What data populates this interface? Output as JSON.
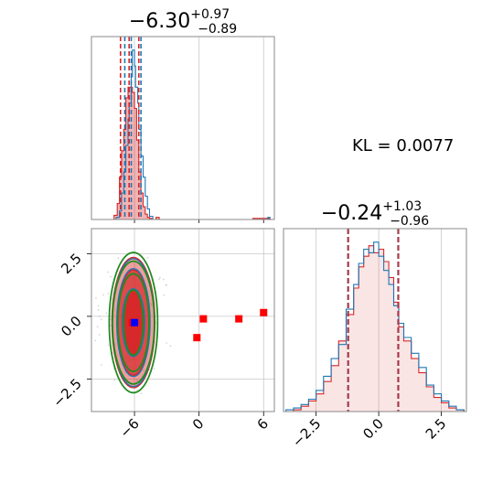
{
  "chart_data": {
    "type": "corner",
    "colors": {
      "blue": "#1f77b4",
      "red": "#d62728",
      "green": "#228B22",
      "grid": "#c8c8c8",
      "frame": "#888888"
    },
    "kl_text": "KL = 0.0077",
    "params": [
      {
        "title": {
          "main": "−6.30",
          "plus": "+0.97",
          "minus": "−0.89"
        },
        "xlim": [
          -10,
          7
        ],
        "quantile_lines": {
          "blue": [
            -6.9,
            -6.3,
            -5.4
          ],
          "red": [
            -7.3,
            -6.5,
            -5.6
          ]
        },
        "hist_blue": {
          "x": [
            -8.0,
            -7.7,
            -7.4,
            -7.2,
            -7.0,
            -6.8,
            -6.6,
            -6.5,
            -6.3,
            -6.2,
            -6.0,
            -5.9,
            -5.7,
            -5.6,
            -5.4,
            -5.2,
            -5.0,
            -4.8,
            -4.6,
            -4.3,
            6.4
          ],
          "y": [
            0,
            2,
            8,
            25,
            45,
            70,
            95,
            110,
            135,
            160,
            145,
            125,
            110,
            85,
            60,
            40,
            22,
            10,
            3,
            0,
            2
          ]
        },
        "hist_red": {
          "x": [
            -8.2,
            -7.9,
            -7.6,
            -7.4,
            -7.2,
            -7.0,
            -6.8,
            -6.6,
            -6.4,
            -6.2,
            -6.0,
            -5.8,
            -5.6,
            -5.4,
            -5.2,
            -5.0,
            -4.8,
            -4.6,
            -4.4,
            -4.0,
            -3.7,
            5.0,
            6.6
          ],
          "y": [
            0,
            4,
            15,
            40,
            65,
            85,
            115,
            125,
            125,
            120,
            105,
            75,
            45,
            25,
            12,
            5,
            2,
            1,
            0,
            2,
            0,
            1,
            0
          ]
        }
      },
      {
        "title": {
          "main": "−0.24",
          "plus": "+1.03",
          "minus": "−0.96"
        },
        "xlim": [
          -3.8,
          3.5
        ],
        "ticks": [
          "−2.5",
          "0.0",
          "2.5"
        ],
        "tick_values": [
          -2.5,
          0.0,
          2.5
        ],
        "quantile_lines": {
          "blue": [
            -1.22,
            0.78
          ],
          "red": [
            -1.22,
            0.78
          ]
        },
        "hist_blue": {
          "x": [
            -3.7,
            -3.4,
            -3.1,
            -2.8,
            -2.5,
            -2.2,
            -1.9,
            -1.6,
            -1.3,
            -1.0,
            -0.8,
            -0.6,
            -0.4,
            -0.2,
            0.0,
            0.2,
            0.4,
            0.6,
            0.8,
            1.0,
            1.3,
            1.6,
            1.9,
            2.2,
            2.5,
            2.8,
            3.1,
            3.4
          ],
          "y": [
            1,
            2,
            4,
            7,
            12,
            20,
            30,
            38,
            58,
            72,
            84,
            92,
            90,
            96,
            88,
            80,
            72,
            60,
            50,
            42,
            33,
            25,
            15,
            10,
            6,
            3,
            1,
            0
          ]
        },
        "hist_red": {
          "x": [
            -3.7,
            -3.4,
            -3.1,
            -2.8,
            -2.5,
            -2.2,
            -1.9,
            -1.6,
            -1.3,
            -1.0,
            -0.8,
            -0.6,
            -0.4,
            -0.2,
            0.0,
            0.2,
            0.4,
            0.6,
            0.8,
            1.0,
            1.3,
            1.6,
            1.9,
            2.2,
            2.5,
            2.8,
            3.1,
            3.4
          ],
          "y": [
            0,
            1,
            3,
            6,
            10,
            17,
            26,
            40,
            55,
            70,
            82,
            88,
            94,
            90,
            92,
            85,
            76,
            62,
            48,
            40,
            30,
            22,
            14,
            8,
            5,
            2,
            1,
            0
          ]
        }
      }
    ],
    "joint": {
      "xlim": [
        -10,
        7
      ],
      "ylim": [
        -3.8,
        3.5
      ],
      "x_ticks": [
        "−6",
        "0",
        "6"
      ],
      "x_tick_values": [
        -6,
        0,
        6
      ],
      "y_ticks": [
        "2.5",
        "0.0",
        "−2.5"
      ],
      "y_tick_values": [
        2.5,
        0.0,
        -2.5
      ],
      "center": {
        "x": -6.1,
        "y": -0.25
      },
      "red_fill_contours": [
        {
          "rx": 1.0,
          "ry": 1.3
        },
        {
          "rx": 1.5,
          "ry": 2.1
        },
        {
          "rx": 2.0,
          "ry": 2.6
        }
      ],
      "blue_contours": [
        {
          "rx": 1.05,
          "ry": 1.35
        },
        {
          "rx": 1.55,
          "ry": 2.15
        },
        {
          "rx": 1.95,
          "ry": 2.55
        }
      ],
      "green_contours": [
        {
          "rx": 0.9,
          "ry": 1.3
        },
        {
          "rx": 1.45,
          "ry": 1.95
        },
        {
          "rx": 1.95,
          "ry": 2.45
        },
        {
          "rx": 2.25,
          "ry": 2.8
        }
      ],
      "red_markers": [
        {
          "x": -6.2,
          "y": -0.25
        },
        {
          "x": -0.2,
          "y": -0.85
        },
        {
          "x": 0.4,
          "y": -0.1
        },
        {
          "x": 3.7,
          "y": -0.1
        },
        {
          "x": 6.0,
          "y": 0.15
        }
      ],
      "blue_marker": {
        "x": -6.0,
        "y": -0.25
      }
    }
  }
}
